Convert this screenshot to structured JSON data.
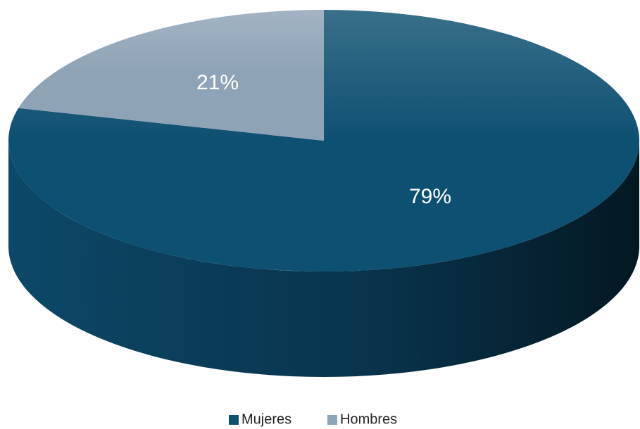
{
  "chart_data": {
    "type": "pie",
    "categories": [
      "Mujeres",
      "Hombres"
    ],
    "values": [
      79,
      21
    ],
    "value_labels": [
      "79%",
      "21%"
    ],
    "colors": [
      "#0e5071",
      "#8ea3b6"
    ],
    "legend": "bottom"
  }
}
